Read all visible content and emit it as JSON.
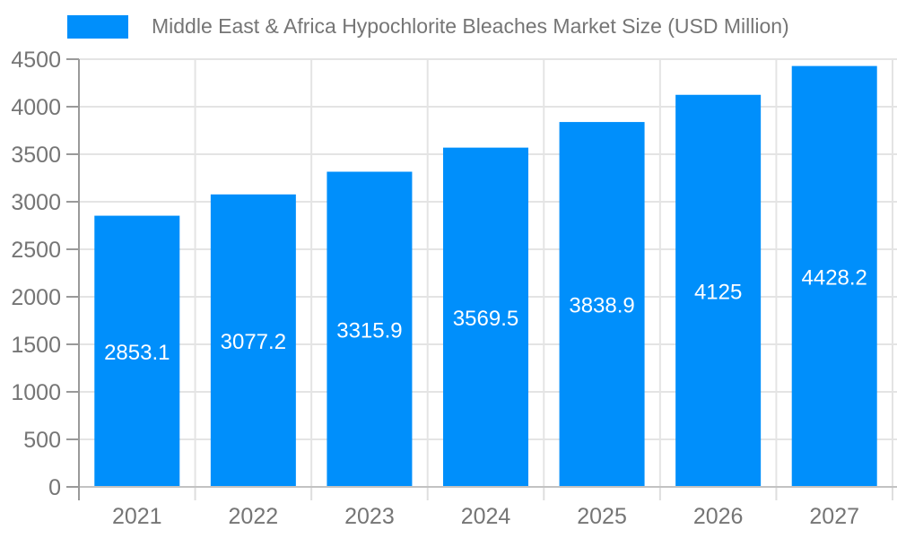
{
  "legend": {
    "title": "Middle East & Africa Hypochlorite Bleaches Market Size (USD Million)"
  },
  "chart_data": {
    "type": "bar",
    "title": "Middle East & Africa Hypochlorite Bleaches Market Size (USD Million)",
    "categories": [
      "2021",
      "2022",
      "2023",
      "2024",
      "2025",
      "2026",
      "2027"
    ],
    "values": [
      2853.1,
      3077.2,
      3315.9,
      3569.5,
      3838.9,
      4125,
      4428.2
    ],
    "value_labels": [
      "2853.1",
      "3077.2",
      "3315.9",
      "3569.5",
      "3838.9",
      "4125",
      "4428.2"
    ],
    "xlabel": "",
    "ylabel": "",
    "ylim": [
      0,
      4500
    ],
    "y_ticks": [
      0,
      500,
      1000,
      1500,
      2000,
      2500,
      3000,
      3500,
      4000,
      4500
    ],
    "grid": true,
    "legend_position": "top",
    "colors": {
      "bar": "#008FFB",
      "grid_line": "#e4e4e4",
      "y_axis_line": "#9a9a9a",
      "x_axis_line": "#c2c2c2",
      "x_boundary_tick": "#dedede",
      "axis_label": "#757575",
      "value_label": "#ffffff"
    }
  }
}
